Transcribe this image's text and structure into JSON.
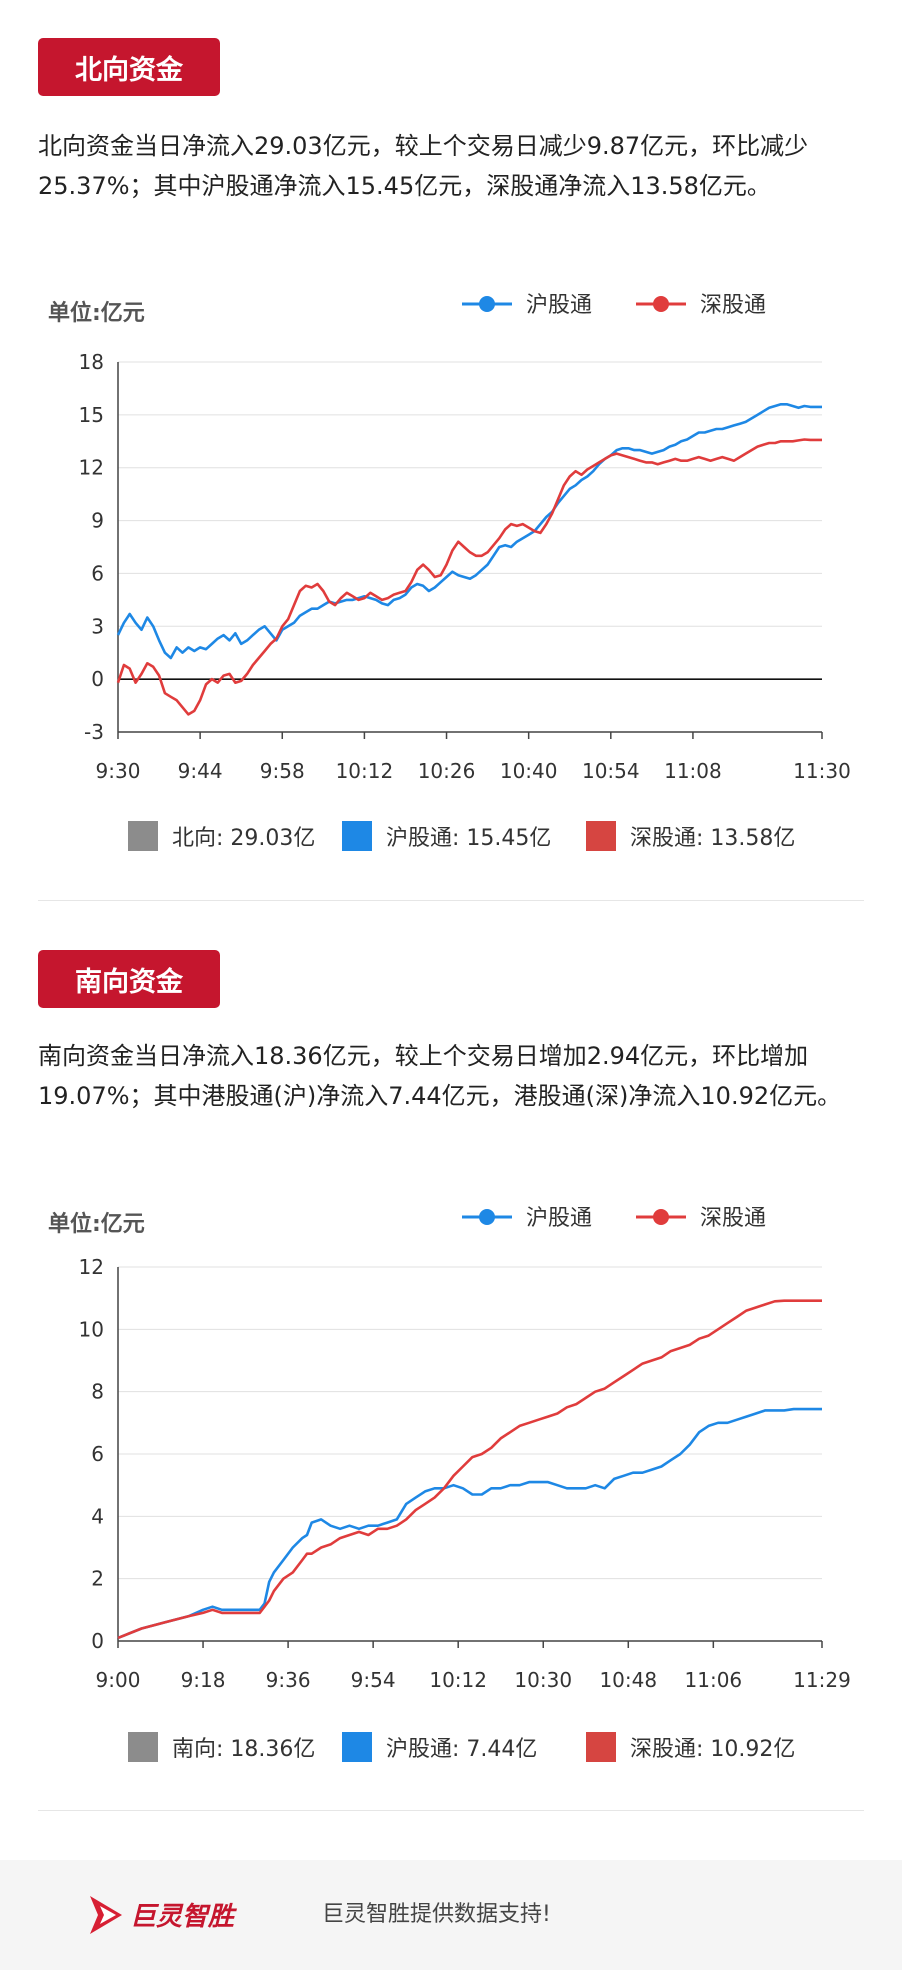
{
  "north": {
    "badge": "北向资金",
    "description": "北向资金当日净流入29.03亿元，较上个交易日减少9.87亿元，环比减少25.37%；其中沪股通净流入15.45亿元，深股通净流入13.58亿元。",
    "summary": [
      {
        "label": "北向: 29.03亿",
        "color": "#8c8c8c"
      },
      {
        "label": "沪股通: 15.45亿",
        "color": "#1e88e5"
      },
      {
        "label": "深股通: 13.58亿",
        "color": "#d64541"
      }
    ]
  },
  "south": {
    "badge": "南向资金",
    "description": "南向资金当日净流入18.36亿元，较上个交易日增加2.94亿元，环比增加19.07%；其中港股通(沪)净流入7.44亿元，港股通(深)净流入10.92亿元。",
    "summary": [
      {
        "label": "南向: 18.36亿",
        "color": "#8c8c8c"
      },
      {
        "label": "沪股通: 7.44亿",
        "color": "#1e88e5"
      },
      {
        "label": "深股通: 10.92亿",
        "color": "#d64541"
      }
    ]
  },
  "footer": {
    "logo_text": "巨灵智胜",
    "text": "巨灵智胜提供数据支持!"
  },
  "colors": {
    "sh": "#1e88e5",
    "sz": "#e03c3c",
    "badge": "#c5162e"
  },
  "chart_data": [
    {
      "type": "line",
      "unit_label": "单位:亿元",
      "ylim": [
        -3,
        18
      ],
      "yticks": [
        -3,
        0,
        3,
        6,
        9,
        12,
        15,
        18
      ],
      "x_tick_labels": [
        "9:30",
        "9:44",
        "9:58",
        "10:12",
        "10:26",
        "10:40",
        "10:54",
        "11:08",
        "11:30"
      ],
      "x_tick_minutes": [
        0,
        14,
        28,
        42,
        56,
        70,
        84,
        98,
        120
      ],
      "x_range_minutes": [
        0,
        120
      ],
      "grid": true,
      "legend_position": "top-right",
      "series": [
        {
          "name": "沪股通",
          "color": "#1e88e5",
          "x": [
            0,
            1,
            2,
            3,
            4,
            5,
            6,
            7,
            8,
            9,
            10,
            11,
            12,
            13,
            14,
            15,
            16,
            17,
            18,
            19,
            20,
            21,
            22,
            23,
            24,
            25,
            26,
            27,
            28,
            29,
            30,
            31,
            32,
            33,
            34,
            35,
            36,
            37,
            38,
            39,
            40,
            41,
            42,
            43,
            44,
            45,
            46,
            47,
            48,
            49,
            50,
            51,
            52,
            53,
            54,
            55,
            56,
            57,
            58,
            59,
            60,
            61,
            62,
            63,
            64,
            65,
            66,
            67,
            68,
            69,
            70,
            71,
            72,
            73,
            74,
            75,
            76,
            77,
            78,
            79,
            80,
            81,
            82,
            83,
            84,
            85,
            86,
            87,
            88,
            89,
            90,
            91,
            92,
            93,
            94,
            95,
            96,
            97,
            98,
            99,
            100,
            101,
            102,
            103,
            104,
            105,
            106,
            107,
            108,
            109,
            110,
            111,
            112,
            113,
            114,
            115,
            116,
            117,
            118,
            119,
            120
          ],
          "y": [
            2.5,
            3.2,
            3.7,
            3.2,
            2.8,
            3.5,
            3.0,
            2.2,
            1.5,
            1.2,
            1.8,
            1.5,
            1.8,
            1.6,
            1.8,
            1.7,
            2.0,
            2.3,
            2.5,
            2.2,
            2.6,
            2.0,
            2.2,
            2.5,
            2.8,
            3.0,
            2.6,
            2.2,
            2.8,
            3.0,
            3.2,
            3.6,
            3.8,
            4.0,
            4.0,
            4.2,
            4.4,
            4.3,
            4.4,
            4.5,
            4.5,
            4.6,
            4.7,
            4.6,
            4.5,
            4.3,
            4.2,
            4.5,
            4.6,
            4.8,
            5.2,
            5.4,
            5.3,
            5.0,
            5.2,
            5.5,
            5.8,
            6.1,
            5.9,
            5.8,
            5.7,
            5.9,
            6.2,
            6.5,
            7.0,
            7.5,
            7.6,
            7.5,
            7.8,
            8.0,
            8.2,
            8.4,
            8.8,
            9.2,
            9.5,
            10.0,
            10.4,
            10.8,
            11.0,
            11.3,
            11.5,
            11.8,
            12.2,
            12.5,
            12.7,
            13.0,
            13.1,
            13.1,
            13.0,
            13.0,
            12.9,
            12.8,
            12.9,
            13.0,
            13.2,
            13.3,
            13.5,
            13.6,
            13.8,
            14.0,
            14.0,
            14.1,
            14.2,
            14.2,
            14.3,
            14.4,
            14.5,
            14.6,
            14.8,
            15.0,
            15.2,
            15.4,
            15.5,
            15.6,
            15.6,
            15.5,
            15.4,
            15.5,
            15.45,
            15.45,
            15.45
          ]
        },
        {
          "name": "深股通",
          "color": "#e03c3c",
          "x": [
            0,
            1,
            2,
            3,
            4,
            5,
            6,
            7,
            8,
            9,
            10,
            11,
            12,
            13,
            14,
            15,
            16,
            17,
            18,
            19,
            20,
            21,
            22,
            23,
            24,
            25,
            26,
            27,
            28,
            29,
            30,
            31,
            32,
            33,
            34,
            35,
            36,
            37,
            38,
            39,
            40,
            41,
            42,
            43,
            44,
            45,
            46,
            47,
            48,
            49,
            50,
            51,
            52,
            53,
            54,
            55,
            56,
            57,
            58,
            59,
            60,
            61,
            62,
            63,
            64,
            65,
            66,
            67,
            68,
            69,
            70,
            71,
            72,
            73,
            74,
            75,
            76,
            77,
            78,
            79,
            80,
            81,
            82,
            83,
            84,
            85,
            86,
            87,
            88,
            89,
            90,
            91,
            92,
            93,
            94,
            95,
            96,
            97,
            98,
            99,
            100,
            101,
            102,
            103,
            104,
            105,
            106,
            107,
            108,
            109,
            110,
            111,
            112,
            113,
            114,
            115,
            116,
            117,
            118,
            119,
            120
          ],
          "y": [
            -0.2,
            0.8,
            0.6,
            -0.2,
            0.3,
            0.9,
            0.7,
            0.2,
            -0.8,
            -1.0,
            -1.2,
            -1.6,
            -2.0,
            -1.8,
            -1.2,
            -0.3,
            0.0,
            -0.2,
            0.2,
            0.3,
            -0.2,
            -0.1,
            0.3,
            0.8,
            1.2,
            1.6,
            2.0,
            2.3,
            3.0,
            3.4,
            4.2,
            5.0,
            5.3,
            5.2,
            5.4,
            5.0,
            4.4,
            4.2,
            4.6,
            4.9,
            4.7,
            4.5,
            4.6,
            4.9,
            4.7,
            4.5,
            4.6,
            4.8,
            4.9,
            5.0,
            5.5,
            6.2,
            6.5,
            6.2,
            5.8,
            5.9,
            6.5,
            7.3,
            7.8,
            7.5,
            7.2,
            7.0,
            7.0,
            7.2,
            7.6,
            8.0,
            8.5,
            8.8,
            8.7,
            8.8,
            8.6,
            8.4,
            8.3,
            8.8,
            9.4,
            10.2,
            11.0,
            11.5,
            11.8,
            11.6,
            11.9,
            12.1,
            12.3,
            12.5,
            12.7,
            12.8,
            12.7,
            12.6,
            12.5,
            12.4,
            12.3,
            12.3,
            12.2,
            12.3,
            12.4,
            12.5,
            12.4,
            12.4,
            12.5,
            12.6,
            12.5,
            12.4,
            12.5,
            12.6,
            12.5,
            12.4,
            12.6,
            12.8,
            13.0,
            13.2,
            13.3,
            13.4,
            13.4,
            13.5,
            13.5,
            13.5,
            13.55,
            13.6,
            13.58,
            13.58,
            13.58
          ]
        }
      ]
    },
    {
      "type": "line",
      "unit_label": "单位:亿元",
      "ylim": [
        0,
        12
      ],
      "yticks": [
        0,
        2,
        4,
        6,
        8,
        10,
        12
      ],
      "x_tick_labels": [
        "9:00",
        "9:18",
        "9:36",
        "9:54",
        "10:12",
        "10:30",
        "10:48",
        "11:06",
        "11:29"
      ],
      "x_tick_minutes": [
        0,
        18,
        36,
        54,
        72,
        90,
        108,
        126,
        149
      ],
      "x_range_minutes": [
        0,
        149
      ],
      "grid": true,
      "legend_position": "top-right",
      "series": [
        {
          "name": "沪股通",
          "color": "#1e88e5",
          "x": [
            0,
            5,
            10,
            15,
            18,
            20,
            22,
            25,
            27,
            30,
            31,
            32,
            33,
            35,
            37,
            39,
            40,
            41,
            43,
            45,
            47,
            49,
            51,
            53,
            55,
            57,
            59,
            61,
            63,
            65,
            67,
            69,
            71,
            73,
            75,
            77,
            79,
            81,
            83,
            85,
            87,
            89,
            91,
            93,
            95,
            97,
            99,
            101,
            103,
            105,
            107,
            109,
            111,
            113,
            115,
            117,
            119,
            121,
            123,
            125,
            127,
            129,
            131,
            133,
            135,
            137,
            139,
            141,
            143,
            145,
            147,
            149
          ],
          "y": [
            0.1,
            0.4,
            0.6,
            0.8,
            1.0,
            1.1,
            1.0,
            1.0,
            1.0,
            1.0,
            1.2,
            1.9,
            2.2,
            2.6,
            3.0,
            3.3,
            3.4,
            3.8,
            3.9,
            3.7,
            3.6,
            3.7,
            3.6,
            3.7,
            3.7,
            3.8,
            3.9,
            4.4,
            4.6,
            4.8,
            4.9,
            4.9,
            5.0,
            4.9,
            4.7,
            4.7,
            4.9,
            4.9,
            5.0,
            5.0,
            5.1,
            5.1,
            5.1,
            5.0,
            4.9,
            4.9,
            4.9,
            5.0,
            4.9,
            5.2,
            5.3,
            5.4,
            5.4,
            5.5,
            5.6,
            5.8,
            6.0,
            6.3,
            6.7,
            6.9,
            7.0,
            7.0,
            7.1,
            7.2,
            7.3,
            7.4,
            7.4,
            7.4,
            7.44,
            7.44,
            7.44,
            7.44
          ]
        },
        {
          "name": "深股通",
          "color": "#e03c3c",
          "x": [
            0,
            5,
            10,
            15,
            18,
            20,
            22,
            25,
            27,
            30,
            31,
            32,
            33,
            35,
            37,
            39,
            40,
            41,
            43,
            45,
            47,
            49,
            51,
            53,
            55,
            57,
            59,
            61,
            63,
            65,
            67,
            69,
            71,
            73,
            75,
            77,
            79,
            81,
            83,
            85,
            87,
            89,
            91,
            93,
            95,
            97,
            99,
            101,
            103,
            105,
            107,
            109,
            111,
            113,
            115,
            117,
            119,
            121,
            123,
            125,
            127,
            129,
            131,
            133,
            135,
            137,
            139,
            141,
            143,
            145,
            147,
            149
          ],
          "y": [
            0.1,
            0.4,
            0.6,
            0.8,
            0.9,
            1.0,
            0.9,
            0.9,
            0.9,
            0.9,
            1.1,
            1.3,
            1.6,
            2.0,
            2.2,
            2.6,
            2.8,
            2.8,
            3.0,
            3.1,
            3.3,
            3.4,
            3.5,
            3.4,
            3.6,
            3.6,
            3.7,
            3.9,
            4.2,
            4.4,
            4.6,
            4.9,
            5.3,
            5.6,
            5.9,
            6.0,
            6.2,
            6.5,
            6.7,
            6.9,
            7.0,
            7.1,
            7.2,
            7.3,
            7.5,
            7.6,
            7.8,
            8.0,
            8.1,
            8.3,
            8.5,
            8.7,
            8.9,
            9.0,
            9.1,
            9.3,
            9.4,
            9.5,
            9.7,
            9.8,
            10.0,
            10.2,
            10.4,
            10.6,
            10.7,
            10.8,
            10.9,
            10.92,
            10.92,
            10.92,
            10.92,
            10.92
          ]
        }
      ]
    }
  ]
}
